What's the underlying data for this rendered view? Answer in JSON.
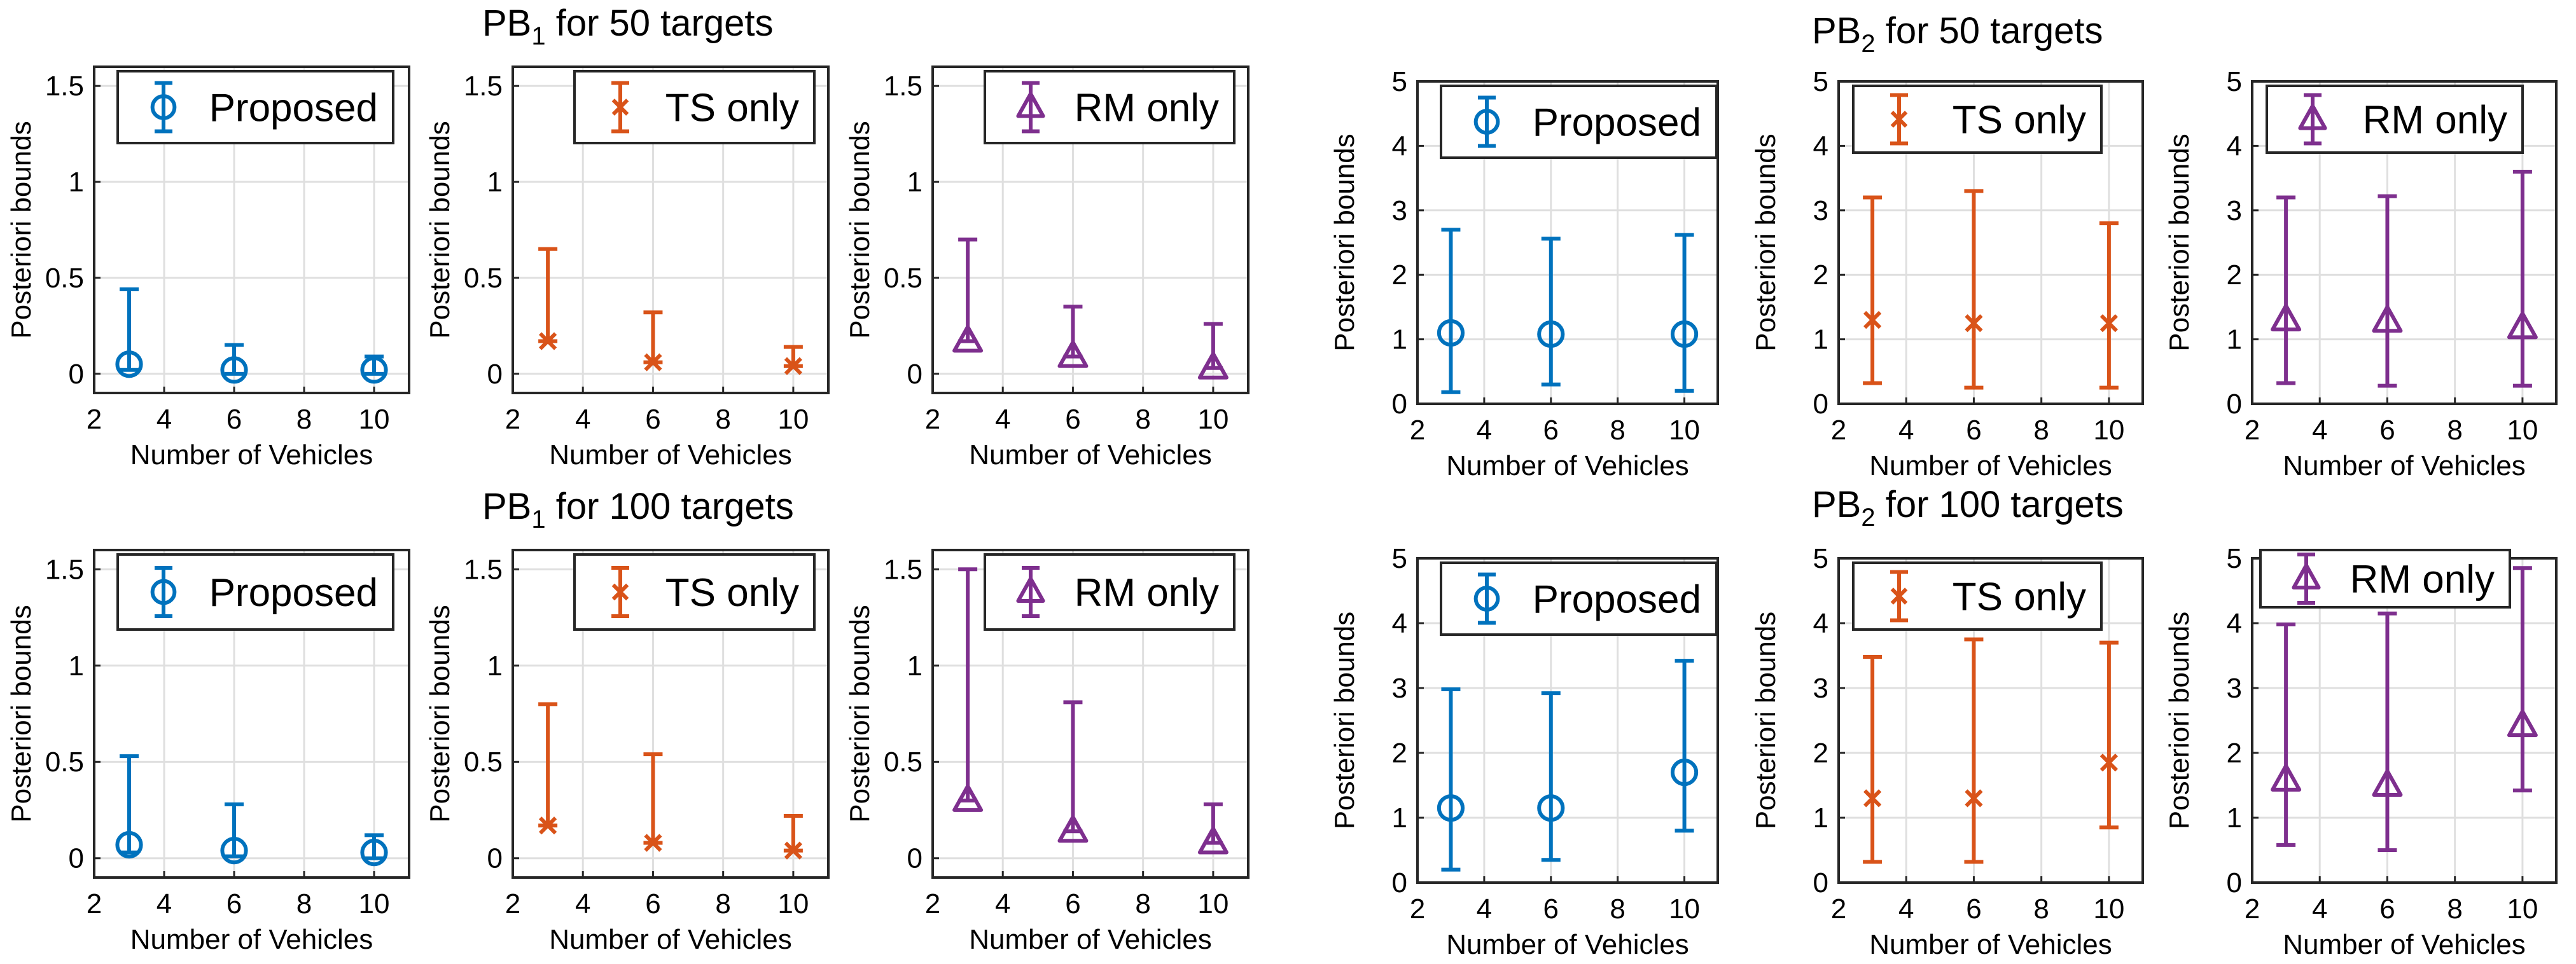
{
  "groups": {
    "pb1_50": {
      "main": "PB",
      "sub": "1",
      "rest": " for 50 targets"
    },
    "pb1_100": {
      "main": "PB",
      "sub": "1",
      "rest": " for 100 targets"
    },
    "pb2_50": {
      "main": "PB",
      "sub": "2",
      "rest": " for 50 targets"
    },
    "pb2_100": {
      "main": "PB",
      "sub": "2",
      "rest": " for 100 targets"
    }
  },
  "colors": {
    "Proposed": "#0072BD",
    "TS only": "#D95319",
    "RM only": "#7E2F8E",
    "grid": "#dfdfdf",
    "axis": "#262626"
  },
  "chart_data": [
    {
      "id": "pb1-50-proposed",
      "group": "PB1 for 50 targets",
      "type": "errorbar",
      "legend": "Proposed",
      "marker": "circle",
      "xlabel": "Number of Vehicles",
      "ylabel": "Posteriori bounds",
      "xlim": [
        2,
        11
      ],
      "xticks": [
        2,
        4,
        6,
        8,
        10
      ],
      "ylim": [
        -0.1,
        1.6
      ],
      "yticks": [
        0,
        0.5,
        1,
        1.5
      ],
      "yticklabels": [
        "0",
        "0.5",
        "1",
        "1.5"
      ],
      "x": [
        3,
        6,
        10
      ],
      "y": [
        0.05,
        0.02,
        0.02
      ],
      "lower": [
        0.02,
        0.0,
        0.0
      ],
      "upper": [
        0.44,
        0.15,
        0.09
      ]
    },
    {
      "id": "pb1-50-ts",
      "group": "PB1 for 50 targets",
      "type": "errorbar",
      "legend": "TS only",
      "marker": "x",
      "xlabel": "Number of Vehicles",
      "ylabel": "Posteriori bounds",
      "xlim": [
        2,
        11
      ],
      "xticks": [
        2,
        4,
        6,
        8,
        10
      ],
      "ylim": [
        -0.1,
        1.6
      ],
      "yticks": [
        0,
        0.5,
        1,
        1.5
      ],
      "yticklabels": [
        "0",
        "0.5",
        "1",
        "1.5"
      ],
      "x": [
        3,
        6,
        10
      ],
      "y": [
        0.17,
        0.06,
        0.04
      ],
      "lower": [
        0.17,
        0.06,
        0.04
      ],
      "upper": [
        0.65,
        0.32,
        0.14
      ]
    },
    {
      "id": "pb1-50-rm",
      "group": "PB1 for 50 targets",
      "type": "errorbar",
      "legend": "RM only",
      "marker": "triangle",
      "xlabel": "Number of Vehicles",
      "ylabel": "Posteriori bounds",
      "xlim": [
        2,
        11
      ],
      "xticks": [
        2,
        4,
        6,
        8,
        10
      ],
      "ylim": [
        -0.1,
        1.6
      ],
      "yticks": [
        0,
        0.5,
        1,
        1.5
      ],
      "yticklabels": [
        "0",
        "0.5",
        "1",
        "1.5"
      ],
      "x": [
        3,
        6,
        10
      ],
      "y": [
        0.17,
        0.09,
        0.03
      ],
      "lower": [
        0.17,
        0.09,
        0.03
      ],
      "upper": [
        0.7,
        0.35,
        0.26
      ]
    },
    {
      "id": "pb1-100-proposed",
      "group": "PB1 for 100 targets",
      "type": "errorbar",
      "legend": "Proposed",
      "marker": "circle",
      "xlabel": "Number of Vehicles",
      "ylabel": "Posteriori bounds",
      "xlim": [
        2,
        11
      ],
      "xticks": [
        2,
        4,
        6,
        8,
        10
      ],
      "ylim": [
        -0.1,
        1.6
      ],
      "yticks": [
        0,
        0.5,
        1,
        1.5
      ],
      "yticklabels": [
        "0",
        "0.5",
        "1",
        "1.5"
      ],
      "x": [
        3,
        6,
        10
      ],
      "y": [
        0.07,
        0.04,
        0.03
      ],
      "lower": [
        0.03,
        0.01,
        0.0
      ],
      "upper": [
        0.53,
        0.28,
        0.12
      ]
    },
    {
      "id": "pb1-100-ts",
      "group": "PB1 for 100 targets",
      "type": "errorbar",
      "legend": "TS only",
      "marker": "x",
      "xlabel": "Number of Vehicles",
      "ylabel": "Posteriori bounds",
      "xlim": [
        2,
        11
      ],
      "xticks": [
        2,
        4,
        6,
        8,
        10
      ],
      "ylim": [
        -0.1,
        1.6
      ],
      "yticks": [
        0,
        0.5,
        1,
        1.5
      ],
      "yticklabels": [
        "0",
        "0.5",
        "1",
        "1.5"
      ],
      "x": [
        3,
        6,
        10
      ],
      "y": [
        0.17,
        0.08,
        0.04
      ],
      "lower": [
        0.17,
        0.08,
        0.04
      ],
      "upper": [
        0.8,
        0.54,
        0.22
      ]
    },
    {
      "id": "pb1-100-rm",
      "group": "PB1 for 100 targets",
      "type": "errorbar",
      "legend": "RM only",
      "marker": "triangle",
      "xlabel": "Number of Vehicles",
      "ylabel": "Posteriori bounds",
      "xlim": [
        2,
        11
      ],
      "xticks": [
        2,
        4,
        6,
        8,
        10
      ],
      "ylim": [
        -0.1,
        1.6
      ],
      "yticks": [
        0,
        0.5,
        1,
        1.5
      ],
      "yticklabels": [
        "0",
        "0.5",
        "1",
        "1.5"
      ],
      "x": [
        3,
        6,
        10
      ],
      "y": [
        0.3,
        0.14,
        0.08
      ],
      "lower": [
        0.3,
        0.14,
        0.08
      ],
      "upper": [
        1.5,
        0.81,
        0.28
      ]
    },
    {
      "id": "pb2-50-proposed",
      "group": "PB2 for 50 targets",
      "type": "errorbar",
      "legend": "Proposed",
      "marker": "circle",
      "xlabel": "Number of Vehicles",
      "ylabel": "Posteriori bounds",
      "xlim": [
        2,
        11
      ],
      "xticks": [
        2,
        4,
        6,
        8,
        10
      ],
      "ylim": [
        0,
        5
      ],
      "yticks": [
        0,
        1,
        2,
        3,
        4,
        5
      ],
      "yticklabels": [
        "0",
        "1",
        "2",
        "3",
        "4",
        "5"
      ],
      "x": [
        3,
        6,
        10
      ],
      "y": [
        1.1,
        1.08,
        1.08
      ],
      "lower": [
        0.18,
        0.3,
        0.2
      ],
      "upper": [
        2.7,
        2.56,
        2.62
      ]
    },
    {
      "id": "pb2-50-ts",
      "group": "PB2 for 50 targets",
      "type": "errorbar",
      "legend": "TS only",
      "marker": "x",
      "xlabel": "Number of Vehicles",
      "ylabel": "Posteriori bounds",
      "xlim": [
        2,
        11
      ],
      "xticks": [
        2,
        4,
        6,
        8,
        10
      ],
      "ylim": [
        0,
        5
      ],
      "yticks": [
        0,
        1,
        2,
        3,
        4,
        5
      ],
      "yticklabels": [
        "0",
        "1",
        "2",
        "3",
        "4",
        "5"
      ],
      "x": [
        3,
        6,
        10
      ],
      "y": [
        1.3,
        1.25,
        1.25
      ],
      "lower": [
        0.32,
        0.25,
        0.25
      ],
      "upper": [
        3.2,
        3.3,
        2.8
      ]
    },
    {
      "id": "pb2-50-rm",
      "group": "PB2 for 50 targets",
      "type": "errorbar",
      "legend": "RM only",
      "marker": "triangle",
      "xlabel": "Number of Vehicles",
      "ylabel": "Posteriori bounds",
      "xlim": [
        2,
        11
      ],
      "xticks": [
        2,
        4,
        6,
        8,
        10
      ],
      "ylim": [
        0,
        5
      ],
      "yticks": [
        0,
        1,
        2,
        3,
        4,
        5
      ],
      "yticklabels": [
        "0",
        "1",
        "2",
        "3",
        "4",
        "5"
      ],
      "x": [
        3,
        6,
        10
      ],
      "y": [
        1.3,
        1.28,
        1.18
      ],
      "lower": [
        0.32,
        0.28,
        0.28
      ],
      "upper": [
        3.2,
        3.22,
        3.6
      ]
    },
    {
      "id": "pb2-100-proposed",
      "group": "PB2 for 100 targets",
      "type": "errorbar",
      "legend": "Proposed",
      "marker": "circle",
      "xlabel": "Number of Vehicles",
      "ylabel": "Posteriori bounds",
      "xlim": [
        2,
        11
      ],
      "xticks": [
        2,
        4,
        6,
        8,
        10
      ],
      "ylim": [
        0,
        5
      ],
      "yticks": [
        0,
        1,
        2,
        3,
        4,
        5
      ],
      "yticklabels": [
        "0",
        "1",
        "2",
        "3",
        "4",
        "5"
      ],
      "x": [
        3,
        6,
        10
      ],
      "y": [
        1.15,
        1.15,
        1.7
      ],
      "lower": [
        0.2,
        0.35,
        0.8
      ],
      "upper": [
        2.98,
        2.92,
        3.42
      ]
    },
    {
      "id": "pb2-100-ts",
      "group": "PB2 for 100 targets",
      "type": "errorbar",
      "legend": "TS only",
      "marker": "x",
      "xlabel": "Number of Vehicles",
      "ylabel": "Posteriori bounds",
      "xlim": [
        2,
        11
      ],
      "xticks": [
        2,
        4,
        6,
        8,
        10
      ],
      "ylim": [
        0,
        5
      ],
      "yticks": [
        0,
        1,
        2,
        3,
        4,
        5
      ],
      "yticklabels": [
        "0",
        "1",
        "2",
        "3",
        "4",
        "5"
      ],
      "x": [
        3,
        6,
        10
      ],
      "y": [
        1.3,
        1.3,
        1.85
      ],
      "lower": [
        0.32,
        0.32,
        0.85
      ],
      "upper": [
        3.48,
        3.75,
        3.7
      ]
    },
    {
      "id": "pb2-100-rm",
      "group": "PB2 for 100 targets",
      "type": "errorbar",
      "legend": "RM only",
      "marker": "triangle",
      "xlabel": "Number of Vehicles",
      "ylabel": "Posteriori bounds",
      "xlim": [
        2,
        11
      ],
      "xticks": [
        2,
        4,
        6,
        8,
        10
      ],
      "ylim": [
        0,
        5
      ],
      "yticks": [
        0,
        1,
        2,
        3,
        4,
        5
      ],
      "yticklabels": [
        "0",
        "1",
        "2",
        "3",
        "4",
        "5"
      ],
      "x": [
        3,
        6,
        10
      ],
      "y": [
        1.58,
        1.5,
        2.42
      ],
      "lower": [
        0.58,
        0.5,
        1.42
      ],
      "upper": [
        3.98,
        4.15,
        4.85
      ]
    }
  ]
}
